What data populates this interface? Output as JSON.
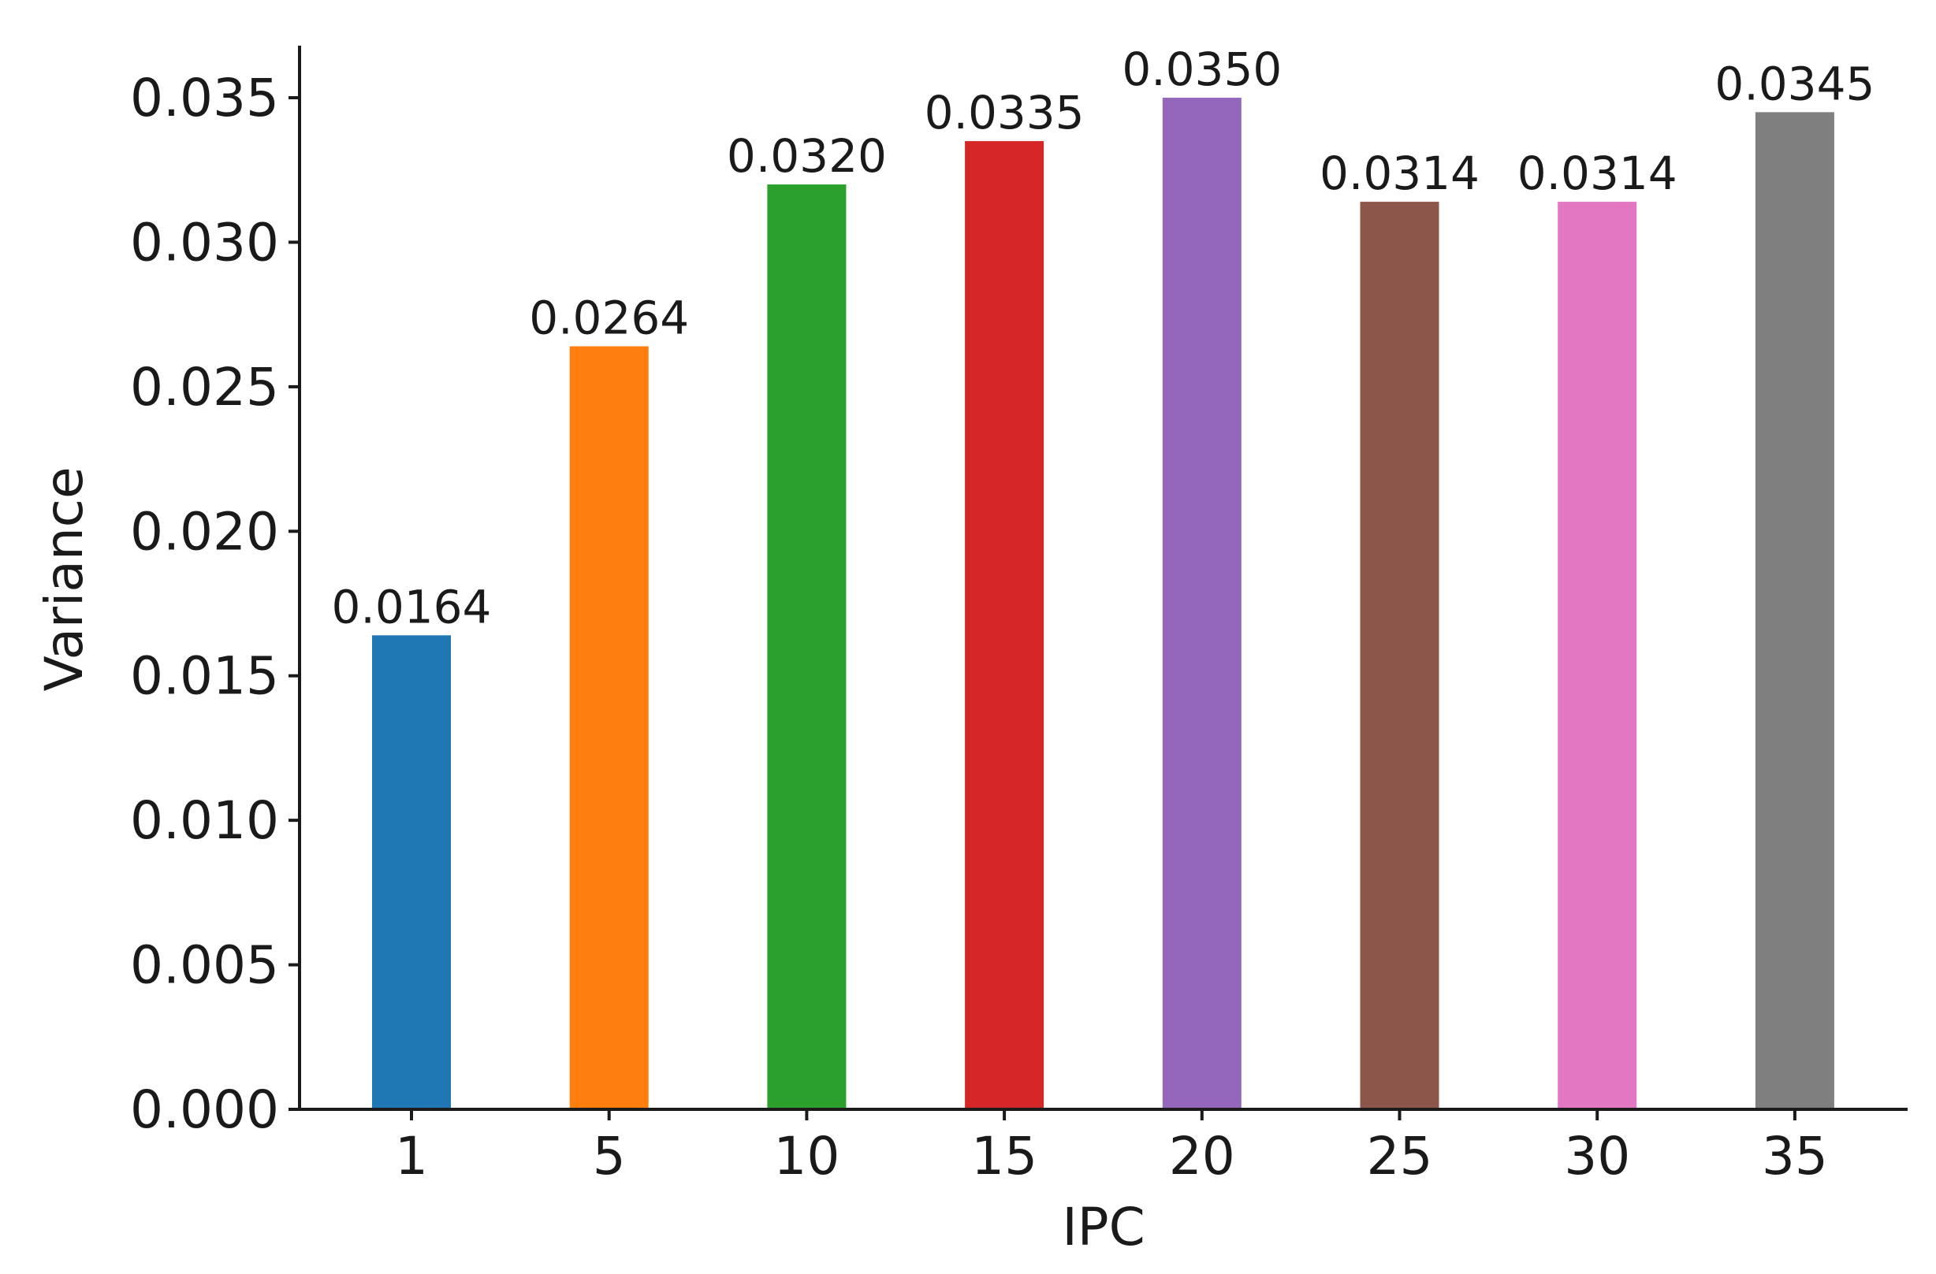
{
  "chart_data": {
    "type": "bar",
    "title": "",
    "xlabel": "IPC",
    "ylabel": "Variance",
    "categories": [
      "1",
      "5",
      "10",
      "15",
      "20",
      "25",
      "30",
      "35"
    ],
    "values": [
      0.0164,
      0.0264,
      0.032,
      0.0335,
      0.035,
      0.0314,
      0.0314,
      0.0345
    ],
    "data_labels": [
      "0.0164",
      "0.0264",
      "0.0320",
      "0.0335",
      "0.0350",
      "0.0314",
      "0.0314",
      "0.0345"
    ],
    "colors": [
      "#1f77b4",
      "#ff7f0e",
      "#2ca02c",
      "#d62728",
      "#9467bd",
      "#8c564b",
      "#e377c2",
      "#7f7f7f"
    ],
    "ylim": [
      0,
      0.0368
    ],
    "yticks": [
      0.0,
      0.005,
      0.01,
      0.015,
      0.02,
      0.025,
      0.03,
      0.035
    ],
    "ytick_labels": [
      "0.000",
      "0.005",
      "0.010",
      "0.015",
      "0.020",
      "0.025",
      "0.030",
      "0.035"
    ],
    "grid": false,
    "legend": "none"
  }
}
